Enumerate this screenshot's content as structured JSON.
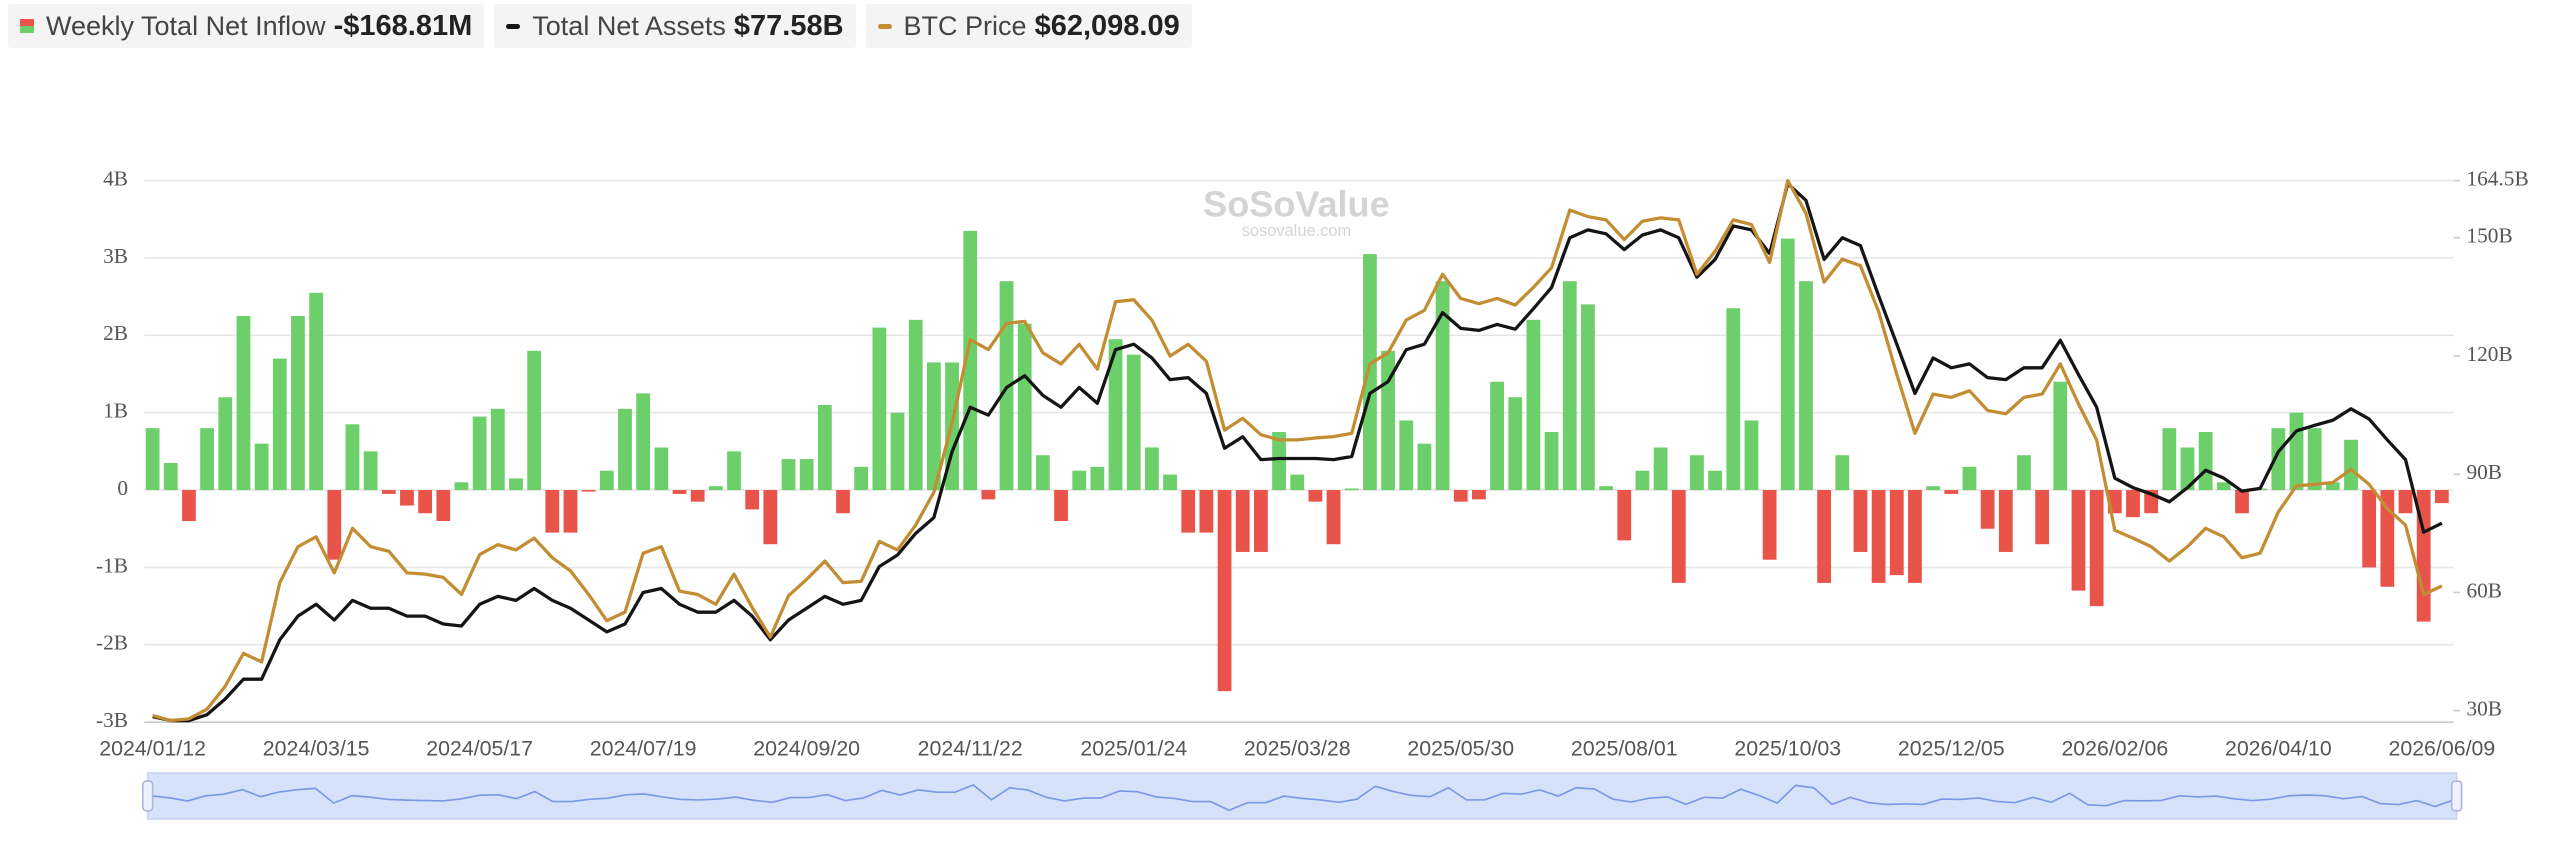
{
  "chart_data": {
    "type": "combo",
    "watermark": {
      "text": "SoSoValue",
      "url": "sosovalue.com"
    },
    "categories": [
      "2024/01/12",
      null,
      null,
      null,
      null,
      null,
      null,
      null,
      null,
      "2024/03/15",
      null,
      null,
      null,
      null,
      null,
      null,
      null,
      null,
      "2024/05/17",
      null,
      null,
      null,
      null,
      null,
      null,
      null,
      null,
      "2024/07/19",
      null,
      null,
      null,
      null,
      null,
      null,
      null,
      null,
      "2024/09/20",
      null,
      null,
      null,
      null,
      null,
      null,
      null,
      null,
      "2024/11/22",
      null,
      null,
      null,
      null,
      null,
      null,
      null,
      null,
      "2025/01/24",
      null,
      null,
      null,
      null,
      null,
      null,
      null,
      null,
      "2025/03/28",
      null,
      null,
      null,
      null,
      null,
      null,
      null,
      null,
      "2025/05/30",
      null,
      null,
      null,
      null,
      null,
      null,
      null,
      null,
      "2025/08/01",
      null,
      null,
      null,
      null,
      null,
      null,
      null,
      null,
      "2025/10/03",
      null,
      null,
      null,
      null,
      null,
      null,
      null,
      null,
      "2025/12/05",
      null,
      null,
      null,
      null,
      null,
      null,
      null,
      null,
      "2026/02/06",
      null,
      null,
      null,
      null,
      null,
      null,
      null,
      null,
      "2026/04/10",
      null,
      null,
      null,
      null,
      null,
      null,
      null,
      null,
      "2026/06/09"
    ],
    "series": [
      {
        "name": "Weekly Total Net Inflow",
        "legend_value": "-$168.81M",
        "type": "bar",
        "axis": "y",
        "color": "#6dcf6a",
        "negative_color": "#e8534a",
        "values": [
          0.8,
          0.35,
          -0.4,
          0.8,
          1.2,
          2.25,
          0.6,
          1.7,
          2.25,
          2.55,
          -0.9,
          0.85,
          0.5,
          -0.05,
          -0.2,
          -0.3,
          -0.4,
          0.1,
          0.95,
          1.05,
          0.15,
          1.8,
          -0.55,
          -0.55,
          -0.02,
          0.25,
          1.05,
          1.25,
          0.55,
          -0.05,
          -0.15,
          0.05,
          0.5,
          -0.25,
          -0.7,
          0.4,
          0.4,
          1.1,
          -0.3,
          0.3,
          2.1,
          1.0,
          2.2,
          1.65,
          1.65,
          3.35,
          -0.12,
          2.7,
          2.15,
          0.45,
          -0.4,
          0.25,
          0.3,
          1.95,
          1.75,
          0.55,
          0.2,
          -0.55,
          -0.55,
          -2.6,
          -0.8,
          -0.8,
          0.75,
          0.2,
          -0.15,
          -0.7,
          0.02,
          3.05,
          1.8,
          0.9,
          0.6,
          2.7,
          -0.15,
          -0.12,
          1.4,
          1.2,
          2.2,
          0.75,
          2.7,
          2.4,
          0.05,
          -0.65,
          0.25,
          0.55,
          -1.2,
          0.45,
          0.25,
          2.35,
          0.9,
          -0.9,
          3.25,
          2.7,
          -1.2,
          0.45,
          -0.8,
          -1.2,
          -1.1,
          -1.2,
          0.05,
          -0.05,
          0.3,
          -0.5,
          -0.8,
          0.45,
          -0.7,
          1.4,
          -1.3,
          -1.5,
          -0.3,
          -0.35,
          -0.3,
          0.8,
          0.55,
          0.75,
          0.1,
          -0.3,
          0.02,
          0.8,
          1.0,
          0.8,
          0.1,
          0.65,
          -1.0,
          -1.25,
          -0.3,
          -1.7,
          -0.16881
        ]
      },
      {
        "name": "Total Net Assets",
        "legend_value": "$77.58B",
        "type": "line",
        "axis": "y2",
        "color": "#151515",
        "values": [
          28.5,
          27.5,
          27.5,
          29,
          33,
          38,
          38,
          48,
          54,
          57,
          53,
          58,
          56,
          56,
          54,
          54,
          52,
          51.5,
          57,
          59,
          58,
          61,
          58,
          56,
          53,
          50,
          52,
          60,
          61,
          57,
          55,
          55,
          58,
          54,
          48,
          53,
          56,
          59,
          57,
          58,
          66.6,
          69.5,
          75,
          79,
          95.7,
          107,
          105,
          112,
          115,
          110,
          107,
          112,
          108,
          121.6,
          123,
          119.5,
          114,
          114.5,
          110.5,
          96.6,
          99.5,
          93.7,
          94,
          94,
          94,
          93.7,
          94.5,
          110.5,
          113.5,
          121.6,
          123,
          131,
          127,
          126.5,
          128,
          126.8,
          132,
          137.4,
          150,
          152,
          151,
          147,
          150.7,
          152,
          150,
          140,
          144.5,
          153,
          152,
          146,
          163.7,
          159.5,
          144.5,
          150,
          148,
          135.3,
          123,
          110.5,
          119.5,
          117,
          118,
          114.5,
          114,
          117,
          117,
          124,
          115.3,
          107,
          89,
          86.6,
          85,
          83,
          86.6,
          91,
          89,
          85.7,
          86.4,
          95.7,
          101,
          102.4,
          103.7,
          106.6,
          104,
          98.7,
          93.7,
          75.3,
          77.58
        ]
      },
      {
        "name": "BTC Price",
        "legend_value": "$62,098.09",
        "type": "line",
        "axis": "y3",
        "color": "#c38d33",
        "values": [
          42300,
          41550,
          41800,
          43300,
          46800,
          51800,
          50500,
          62600,
          68100,
          69600,
          64100,
          70900,
          68100,
          67400,
          64100,
          63900,
          63400,
          60800,
          66900,
          68400,
          67600,
          69400,
          66400,
          64400,
          60800,
          56800,
          58100,
          67100,
          68100,
          61300,
          60800,
          59300,
          63900,
          58800,
          54300,
          60600,
          63100,
          65900,
          62600,
          62800,
          68900,
          67600,
          71400,
          76400,
          86900,
          99700,
          98200,
          102200,
          102500,
          97700,
          96000,
          99000,
          95200,
          105500,
          105800,
          102700,
          97200,
          99000,
          96400,
          85900,
          87700,
          85200,
          84400,
          84400,
          84700,
          84900,
          85400,
          96000,
          97700,
          102700,
          104200,
          109700,
          106000,
          105200,
          106000,
          105000,
          107700,
          110700,
          119500,
          118500,
          118000,
          115000,
          117800,
          118300,
          118000,
          109700,
          113200,
          118000,
          117300,
          111500,
          124000,
          119000,
          108500,
          112000,
          111000,
          104000,
          94400,
          85400,
          91400,
          90900,
          91900,
          88900,
          88400,
          90900,
          91400,
          96000,
          89900,
          84400,
          70600,
          69400,
          68100,
          65900,
          68100,
          70900,
          69600,
          66400,
          67100,
          73400,
          77400,
          77600,
          77900,
          79900,
          77600,
          73900,
          71400,
          60800,
          62098.09
        ]
      }
    ],
    "ylim": [
      -3,
      4
    ],
    "yticks": [
      {
        "value": -3,
        "label": "-3B"
      },
      {
        "value": -2,
        "label": "-2B"
      },
      {
        "value": -1,
        "label": "-1B"
      },
      0,
      {
        "value": 1,
        "label": "1B"
      },
      {
        "value": 2,
        "label": "2B"
      },
      {
        "value": 3,
        "label": "3B"
      },
      {
        "value": 4,
        "label": "4B"
      }
    ],
    "y2lim": [
      27.1,
      164.5
    ],
    "y2ticks": [
      {
        "value": 30,
        "label": "30B"
      },
      {
        "value": 60,
        "label": "60B"
      },
      {
        "value": 90,
        "label": "90B"
      },
      {
        "value": 120,
        "label": "120B"
      },
      {
        "value": 150,
        "label": "150B"
      },
      {
        "value": 164.5,
        "label": "164.5B"
      }
    ],
    "y3lim": [
      41300,
      124000
    ],
    "grid": true
  }
}
